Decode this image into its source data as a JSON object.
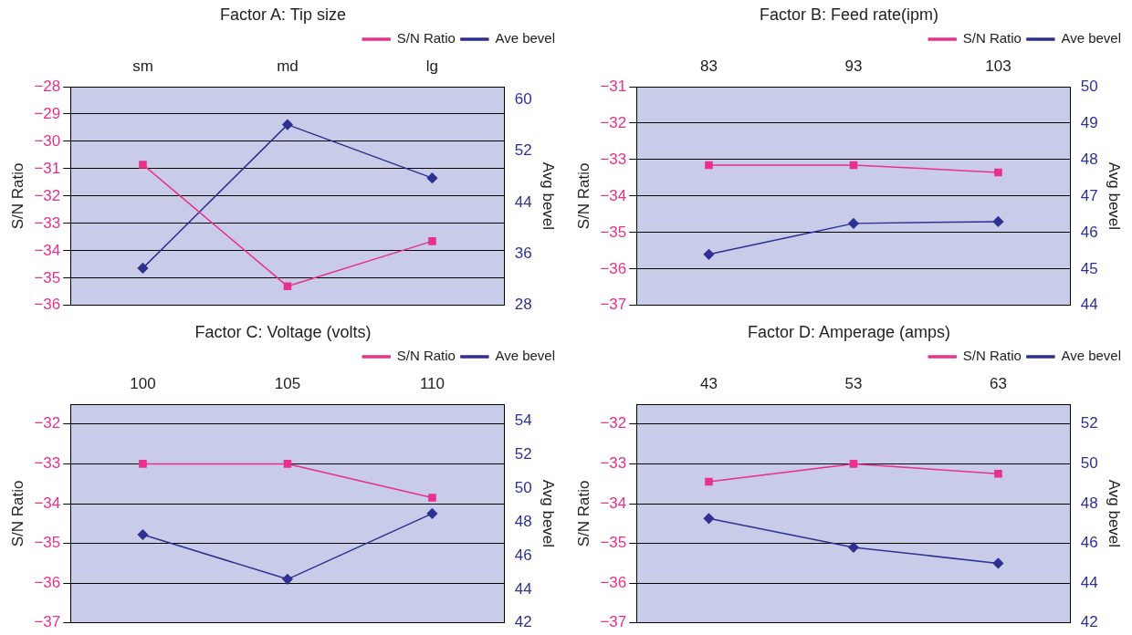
{
  "chart_data": [
    {
      "type": "line",
      "title": "Factor A: Tip size",
      "categories": [
        "sm",
        "md",
        "lg"
      ],
      "ylabel": "S/N Ratio",
      "y2label": "Avg bevel",
      "ylim": [
        -36,
        -28
      ],
      "yticks": [
        -36,
        -35,
        -34,
        -33,
        -32,
        -31,
        -30,
        -29,
        -28
      ],
      "y2lim": [
        28,
        62
      ],
      "y2ticks": [
        28,
        36,
        44,
        52,
        60
      ],
      "grid": "y",
      "legend": "top right",
      "series": [
        {
          "name": "S/N Ratio",
          "color": "#e8308c",
          "marker": "square",
          "values": [
            -30.85,
            -35.3,
            -33.65
          ]
        },
        {
          "name": "Ave bevel",
          "color": "#2e3192",
          "marker": "diamond",
          "axis": "y2",
          "values": [
            33.8,
            56.1,
            47.8
          ]
        }
      ]
    },
    {
      "type": "line",
      "title": "Factor B: Feed rate(ipm)",
      "categories": [
        "83",
        "93",
        "103"
      ],
      "ylabel": "S/N Ratio",
      "y2label": "Avg bevel",
      "ylim": [
        -37,
        -31
      ],
      "yticks": [
        -37,
        -36,
        -35,
        -34,
        -33,
        -32,
        -31
      ],
      "y2lim": [
        44,
        50
      ],
      "y2ticks": [
        44,
        45,
        46,
        47,
        48,
        49,
        50
      ],
      "grid": "y",
      "legend": "top right",
      "series": [
        {
          "name": "S/N Ratio",
          "color": "#e8308c",
          "marker": "square",
          "values": [
            -33.15,
            -33.15,
            -33.35
          ]
        },
        {
          "name": "Ave bevel",
          "color": "#2e3192",
          "marker": "diamond",
          "axis": "y2",
          "values": [
            45.4,
            46.25,
            46.3
          ]
        }
      ]
    },
    {
      "type": "line",
      "title": "Factor C: Voltage (volts)",
      "categories": [
        "100",
        "105",
        "110"
      ],
      "ylabel": "S/N Ratio",
      "y2label": "Avg bevel",
      "ylim": [
        -37,
        -31.5
      ],
      "yticks": [
        -37,
        -36,
        -35,
        -34,
        -33,
        -32
      ],
      "y2lim": [
        42,
        55
      ],
      "y2ticks": [
        42,
        44,
        46,
        48,
        50,
        52,
        54
      ],
      "grid": "y",
      "legend": "top right",
      "series": [
        {
          "name": "S/N Ratio",
          "color": "#e8308c",
          "marker": "square",
          "values": [
            -33,
            -33,
            -33.85
          ]
        },
        {
          "name": "Ave bevel",
          "color": "#2e3192",
          "marker": "diamond",
          "axis": "y2",
          "values": [
            47.25,
            44.6,
            48.5
          ]
        }
      ]
    },
    {
      "type": "line",
      "title": "Factor D: Amperage (amps)",
      "categories": [
        "43",
        "53",
        "63"
      ],
      "ylabel": "S/N Ratio",
      "y2label": "Avg bevel",
      "ylim": [
        -37,
        -31.5
      ],
      "yticks": [
        -37,
        -36,
        -35,
        -34,
        -33,
        -32
      ],
      "y2lim": [
        42,
        53
      ],
      "y2ticks": [
        42,
        44,
        46,
        48,
        50,
        52
      ],
      "grid": "y",
      "legend": "top right",
      "series": [
        {
          "name": "S/N Ratio",
          "color": "#e8308c",
          "marker": "square",
          "values": [
            -33.45,
            -33,
            -33.25
          ]
        },
        {
          "name": "Ave bevel",
          "color": "#2e3192",
          "marker": "diamond",
          "axis": "y2",
          "values": [
            47.25,
            45.8,
            45
          ]
        }
      ]
    }
  ]
}
